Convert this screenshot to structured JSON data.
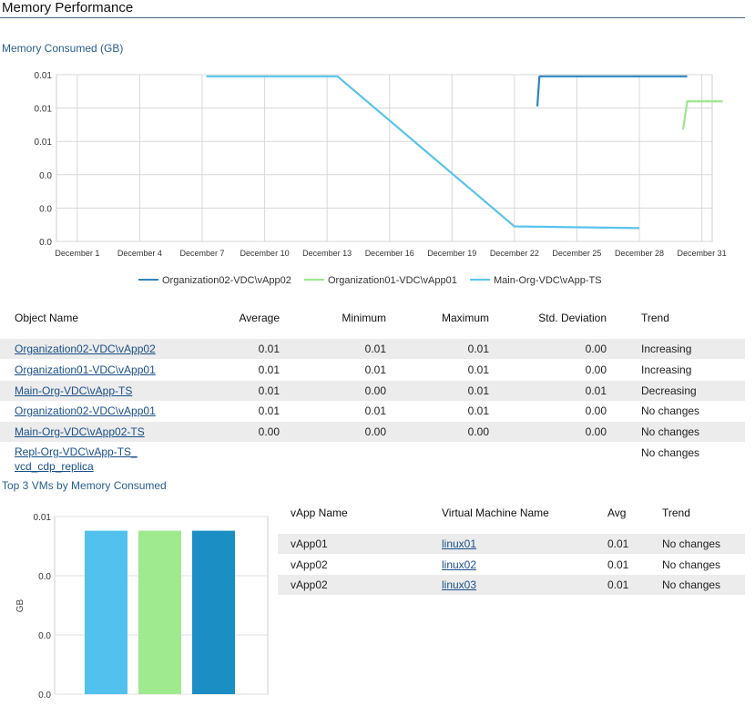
{
  "page_title": "Memory Performance",
  "chart_data": [
    {
      "type": "line",
      "title": "Memory Consumed (GB)",
      "y_tick_labels": [
        "0.01",
        "0.01",
        "0.01",
        "0.0",
        "0.0",
        "0.0"
      ],
      "x_tick_labels": [
        "December 1",
        "December 4",
        "December 7",
        "December 10",
        "December 13",
        "December 16",
        "December 19",
        "December 22",
        "December 25",
        "December 28",
        "December 31"
      ],
      "x_range": [
        0,
        31.5
      ],
      "y_range": [
        0,
        0.01
      ],
      "grid": true,
      "legend_placement": "bottom",
      "series": [
        {
          "name": "Organization02-VDC\\vApp02",
          "color": "#2f86c2",
          "x": [
            23.1,
            23.2,
            30.3
          ],
          "y": [
            0.0081,
            0.0099,
            0.0099
          ]
        },
        {
          "name": "Organization01-VDC\\vApp01",
          "color": "#9de58e",
          "x": [
            30.1,
            30.3,
            32.0
          ],
          "y": [
            0.0067,
            0.0084,
            0.0084
          ]
        },
        {
          "name": "Main-Org-VDC\\vApp-TS",
          "color": "#59c3ec",
          "x": [
            7.2,
            13.5,
            22.0,
            28.0
          ],
          "y": [
            0.0099,
            0.0099,
            0.0009,
            0.0008
          ]
        }
      ]
    },
    {
      "type": "bar",
      "title": "Top 3 VMs by Memory Consumed",
      "ylabel": "GB",
      "y_tick_labels": [
        "0.01",
        "0.0",
        "0.0",
        "0.0"
      ],
      "y_range": [
        0,
        0.01
      ],
      "categories": [
        "linux01",
        "linux02",
        "linux03"
      ],
      "values": [
        0.0092,
        0.0092,
        0.0092
      ],
      "colors": [
        "#52c1ee",
        "#9fea8f",
        "#1b8fc4"
      ]
    }
  ],
  "stats_table": {
    "headers": [
      "Object Name",
      "Average",
      "Minimum",
      "Maximum",
      "Std. Deviation",
      "Trend"
    ],
    "rows": [
      [
        "Organization02-VDC\\vApp02",
        "0.01",
        "0.01",
        "0.01",
        "0.00",
        "Increasing"
      ],
      [
        "Organization01-VDC\\vApp01",
        "0.01",
        "0.01",
        "0.01",
        "0.00",
        "Increasing"
      ],
      [
        "Main-Org-VDC\\vApp-TS",
        "0.01",
        "0.00",
        "0.01",
        "0.01",
        "Decreasing"
      ],
      [
        "Organization02-VDC\\vApp01",
        "0.01",
        "0.01",
        "0.01",
        "0.00",
        "No changes"
      ],
      [
        "Main-Org-VDC\\vApp02-TS",
        "0.00",
        "0.00",
        "0.00",
        "0.00",
        "No changes"
      ],
      [
        "Repl-Org-VDC\\vApp-TS_vcd_cdp_replica",
        "",
        "",
        "",
        "",
        "No changes"
      ]
    ]
  },
  "vm_table": {
    "headers": [
      "vApp Name",
      "Virtual Machine Name",
      "Avg",
      "Trend"
    ],
    "rows": [
      [
        "vApp01",
        "linux01",
        "0.01",
        "No changes"
      ],
      [
        "vApp02",
        "linux02",
        "0.01",
        "No changes"
      ],
      [
        "vApp02",
        "linux03",
        "0.01",
        "No changes"
      ]
    ]
  }
}
